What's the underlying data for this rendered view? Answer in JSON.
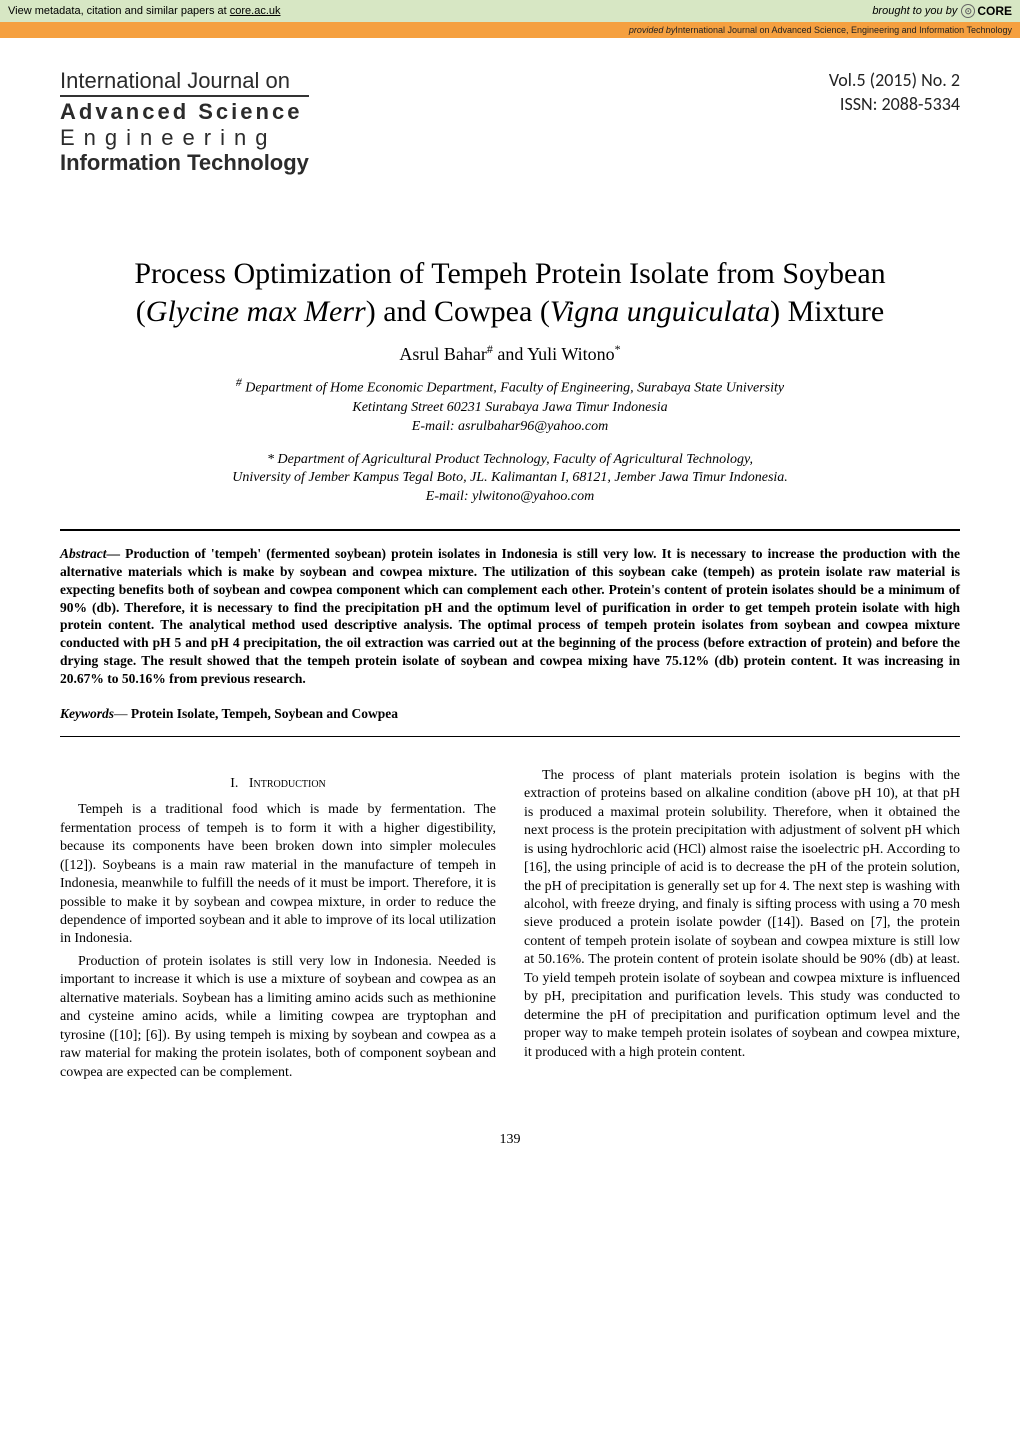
{
  "core_banner": {
    "left_prefix": "View metadata, citation and similar papers at ",
    "left_link": "core.ac.uk",
    "right_prefix": "brought to you by",
    "logo_text": "CORE"
  },
  "provided_banner": {
    "prefix": "provided by ",
    "source": "International Journal on Advanced Science, Engineering and Information Technology"
  },
  "journal_logo": {
    "line1": "International Journal on",
    "line2": "Advanced Science",
    "line3": "Engineering",
    "line4": "Information Technology"
  },
  "issue": {
    "vol": "Vol.5 (2015) No. 2",
    "issn": "ISSN: 2088-5334"
  },
  "title": {
    "plain1": "Process Optimization of Tempeh Protein Isolate from Soybean (",
    "ital1": "Glycine max Merr",
    "plain2": ") and Cowpea (",
    "ital2": "Vigna unguiculata",
    "plain3": ") Mixture"
  },
  "authors": {
    "a1_name": "Asrul Bahar",
    "a1_mark": "#",
    "join": " and ",
    "a2_name": "Yuli Witono",
    "a2_mark": "*"
  },
  "affil1": {
    "mark": "#",
    "line1": " Department of Home Economic Department, Faculty of Engineering, Surabaya State University",
    "line2": "Ketintang Street 60231 Surabaya Jawa Timur Indonesia",
    "line3": "E-mail: asrulbahar96@yahoo.com"
  },
  "affil2": {
    "mark": "*",
    "line1": " Department of Agricultural Product Technology, Faculty of Agricultural Technology,",
    "line2": "University of Jember  Kampus Tegal Boto, JL. Kalimantan I, 68121, Jember Jawa Timur Indonesia.",
    "line3": "E-mail: ylwitono@yahoo.com"
  },
  "abstract": {
    "lead": "Abstract",
    "dash": "— ",
    "body": "Production of 'tempeh' (fermented soybean) protein isolates in Indonesia is still very low. It is necessary to increase the production with the alternative materials which is make by soybean and cowpea mixture. The utilization of this soybean cake (tempeh) as protein isolate raw material is expecting benefits both of soybean and cowpea component which can complement each other. Protein's content of protein isolates should be a minimum of 90% (db). Therefore, it is necessary to find the precipitation pH and the optimum level of purification in order to get tempeh protein isolate with high protein content. The analytical method used descriptive analysis. The optimal process of tempeh protein isolates from soybean and cowpea mixture conducted with pH 5 and pH 4 precipitation, the oil extraction was carried out at the beginning of the process (before extraction of protein) and before the drying stage. The result showed that the tempeh protein isolate of soybean and cowpea mixing have 75.12% (db) protein content. It was increasing in 20.67% to 50.16% from previous research."
  },
  "keywords": {
    "lead": "Keywords",
    "dash": "— ",
    "body": "Protein Isolate, Tempeh, Soybean and Cowpea"
  },
  "section1": {
    "num": "I.",
    "title": "Introduction"
  },
  "body": {
    "p1": "Tempeh is a traditional food which is made by fermentation. The fermentation process of tempeh is to form it with a higher digestibility, because its components have been broken down into simpler molecules ([12]). Soybeans is a main raw material in the manufacture of tempeh in Indonesia, meanwhile to fulfill the needs of it must be import. Therefore, it is possible to make it by soybean and cowpea mixture, in order to reduce the dependence of imported soybean and it able to improve of its local utilization in Indonesia.",
    "p2": "Production of protein isolates is still very low in Indonesia. Needed is important to increase it which is use a mixture of soybean and cowpea as an alternative materials. Soybean has a limiting amino acids such as methionine and cysteine amino acids, while a limiting cowpea are tryptophan and tyrosine ([10]; [6]). By using tempeh is mixing by soybean and cowpea as a raw material for making the protein isolates, both of component soybean and cowpea are expected can be complement.",
    "p3": "The process of plant materials protein isolation is begins with the extraction of proteins based on alkaline condition (above pH 10), at that pH is produced a maximal protein solubility. Therefore, when it obtained the next process is the protein precipitation with adjustment of solvent pH which is using hydrochloric acid (HCl) almost raise the isoelectric pH. According to [16], the using principle of acid is to decrease the pH of the protein solution, the pH of precipitation is generally set up for 4. The next step is washing with alcohol, with freeze drying, and finaly is sifting process with using a 70 mesh sieve produced a protein isolate powder ([14]). Based on [7], the protein content of tempeh protein isolate of soybean and cowpea mixture is still low at 50.16%. The protein content of protein isolate should be 90% (db) at least. To yield tempeh protein isolate of soybean and cowpea mixture is influenced by pH, precipitation and purification levels. This study was conducted to determine the pH of precipitation and purification optimum level and the proper way to make tempeh protein isolates of soybean and cowpea mixture, it produced with a high protein content."
  },
  "page_number": "139",
  "colors": {
    "core_bg": "#d7e7c4",
    "provided_bg": "#f5a040",
    "text": "#000000",
    "page_bg": "#ffffff"
  }
}
